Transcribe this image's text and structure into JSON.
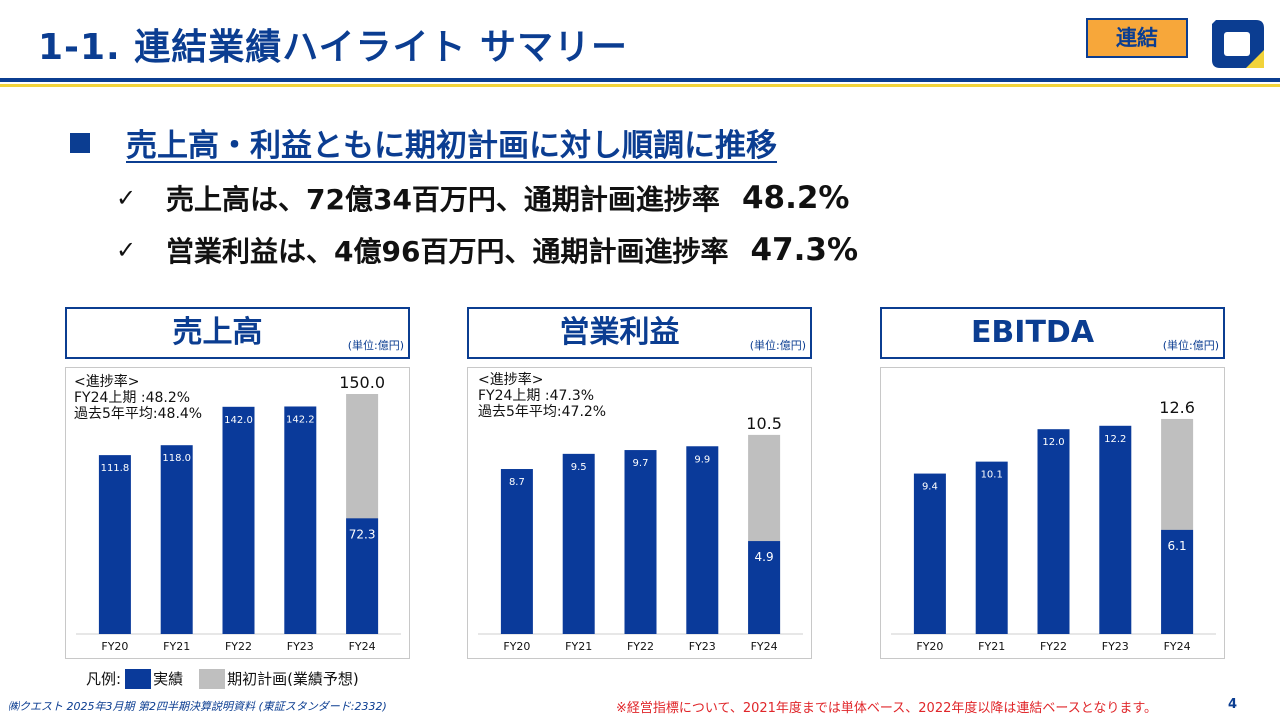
{
  "header": {
    "title": "1-1. 連結業績ハイライト サマリー",
    "tag": "連結",
    "logo_icon": "company-logo-icon"
  },
  "headline": "売上高・利益ともに期初計画に対し順調に推移",
  "bullets": [
    {
      "text": "売上高は、72億34百万円、通期計画進捗率",
      "pct": "48.2%"
    },
    {
      "text": "営業利益は、4億96百万円、通期計画進捗率",
      "pct": "47.3%"
    }
  ],
  "check_symbol": "✓",
  "unit_label": "(単位:億円)",
  "colors": {
    "actual": "#0a3a9a",
    "plan": "#bfbfbf",
    "brand": "#0b3d91",
    "accent": "#f2d33a"
  },
  "chart_data": [
    {
      "type": "bar",
      "title": "売上高",
      "categories": [
        "FY20",
        "FY21",
        "FY22",
        "FY23",
        "FY24"
      ],
      "series": [
        {
          "name": "実績",
          "values": [
            111.8,
            118.0,
            142.0,
            142.2,
            72.3
          ]
        },
        {
          "name": "期初計画(業績予想)",
          "values": [
            null,
            null,
            null,
            null,
            150.0
          ]
        }
      ],
      "value_labels": [
        "111.8",
        "118.0",
        "142.0",
        "142.2",
        "72.3"
      ],
      "plan_label": "150.0",
      "ylim": [
        0,
        160
      ],
      "note": [
        "<進捗率>",
        "FY24上期 :48.2%",
        "過去5年平均:48.4%"
      ]
    },
    {
      "type": "bar",
      "title": "営業利益",
      "categories": [
        "FY20",
        "FY21",
        "FY22",
        "FY23",
        "FY24"
      ],
      "series": [
        {
          "name": "実績",
          "values": [
            8.7,
            9.5,
            9.7,
            9.9,
            4.9
          ]
        },
        {
          "name": "期初計画(業績予想)",
          "values": [
            null,
            null,
            null,
            null,
            10.5
          ]
        }
      ],
      "value_labels": [
        "8.7",
        "9.5",
        "9.7",
        "9.9",
        "4.9"
      ],
      "plan_label": "10.5",
      "ylim": [
        0,
        13.5
      ],
      "note": [
        "<進捗率>",
        "FY24上期 :47.3%",
        "過去5年平均:47.2%"
      ]
    },
    {
      "type": "bar",
      "title": "EBITDA",
      "categories": [
        "FY20",
        "FY21",
        "FY22",
        "FY23",
        "FY24"
      ],
      "series": [
        {
          "name": "実績",
          "values": [
            9.4,
            10.1,
            12.0,
            12.2,
            6.1
          ]
        },
        {
          "name": "期初計画(業績予想)",
          "values": [
            null,
            null,
            null,
            null,
            12.6
          ]
        }
      ],
      "value_labels": [
        "9.4",
        "10.1",
        "12.0",
        "12.2",
        "6.1"
      ],
      "plan_label": "12.6",
      "ylim": [
        0,
        15
      ],
      "note": []
    }
  ],
  "legend": {
    "label": "凡例:",
    "actual": "実績",
    "plan": "期初計画(業績予想)"
  },
  "footer": {
    "source": "㈱クエスト 2025年3月期 第2四半期決算説明資料 (東証スタンダード:2332)",
    "note": "※経営指標について、2021年度までは単体ベース、2022年度以降は連結ベースとなります。",
    "page": "4"
  }
}
